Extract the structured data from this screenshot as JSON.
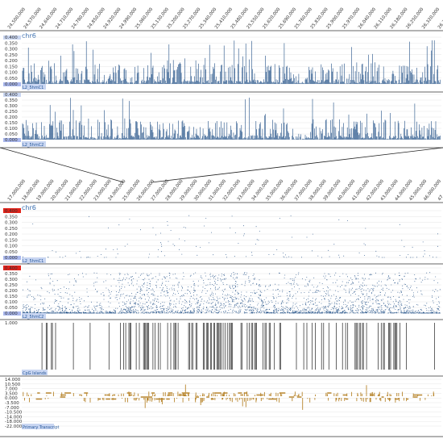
{
  "colors": {
    "signal": "#1f4e85",
    "cpg": "#222222",
    "transcript": "#b8862e",
    "chr_label": "#3a6fb0",
    "track_label_bg": "#c9d6f2",
    "y_min_highlight": "#aab8ee",
    "y_max_highlight": "#e2231a",
    "connector": "#222222"
  },
  "top_panel": {
    "ticks": [
      "24,500,000",
      "24,570,000",
      "24,640,000",
      "24,710,000",
      "24,780,000",
      "24,850,000",
      "24,920,000",
      "24,990,000",
      "25,060,000",
      "25,130,000",
      "25,200,000",
      "25,270,000",
      "25,340,000",
      "25,410,000",
      "25,480,000",
      "25,550,000",
      "25,620,000",
      "25,690,000",
      "25,760,000",
      "25,830,000",
      "25,900,000",
      "25,970,000",
      "26,040,000",
      "26,110,000",
      "26,180,000",
      "26,250,000",
      "26,320,000",
      "26,390,"
    ],
    "chromosome": "chr6",
    "tracks": [
      {
        "label": "L2_5hmC1",
        "y_ticks": [
          "0.400",
          "0.350",
          "0.300",
          "0.250",
          "0.200",
          "0.150",
          "0.100",
          "0.050",
          "0.000"
        ]
      },
      {
        "label": "L2_5hmC2",
        "y_ticks": [
          "0.400",
          "0.350",
          "0.300",
          "0.250",
          "0.200",
          "0.150",
          "0.100",
          "0.050",
          "0.000"
        ]
      }
    ]
  },
  "bottom_panel": {
    "ticks": [
      "17,000,000",
      "18,000,000",
      "19,000,000",
      "20,000,000",
      "21,000,000",
      "22,000,000",
      "23,000,000",
      "24,000,000",
      "25,000,000",
      "26,000,000",
      "27,000,000",
      "28,000,000",
      "29,000,000",
      "30,000,000",
      "31,000,000",
      "32,000,000",
      "33,000,000",
      "34,000,000",
      "35,000,000",
      "36,000,000",
      "37,000,000",
      "38,000,000",
      "39,000,000",
      "40,000,000",
      "41,000,000",
      "42,000,000",
      "43,000,000",
      "44,000,000",
      "45,000,000",
      "46,000,000",
      "47"
    ],
    "chromosome": "chr6",
    "tracks": [
      {
        "label": "L2_5hmC1",
        "y_ticks": [
          "0.400",
          "0.350",
          "0.300",
          "0.250",
          "0.200",
          "0.150",
          "0.100",
          "0.050",
          "0.000"
        ]
      },
      {
        "label": "L2_5hmC2",
        "y_ticks": [
          "0.400",
          "0.350",
          "0.300",
          "0.250",
          "0.200",
          "0.150",
          "0.100",
          "0.050",
          "0.000"
        ]
      },
      {
        "label": "CpG Islands",
        "y_ticks": [
          "1.000"
        ]
      },
      {
        "label": "Primary Transcript",
        "y_ticks": [
          "14.000",
          "10.500",
          "7.000",
          "3.500",
          "0.000",
          "-3.500",
          "-7.000",
          "-10.500",
          "-14.000",
          "-18.000",
          "-22.000"
        ]
      }
    ]
  }
}
